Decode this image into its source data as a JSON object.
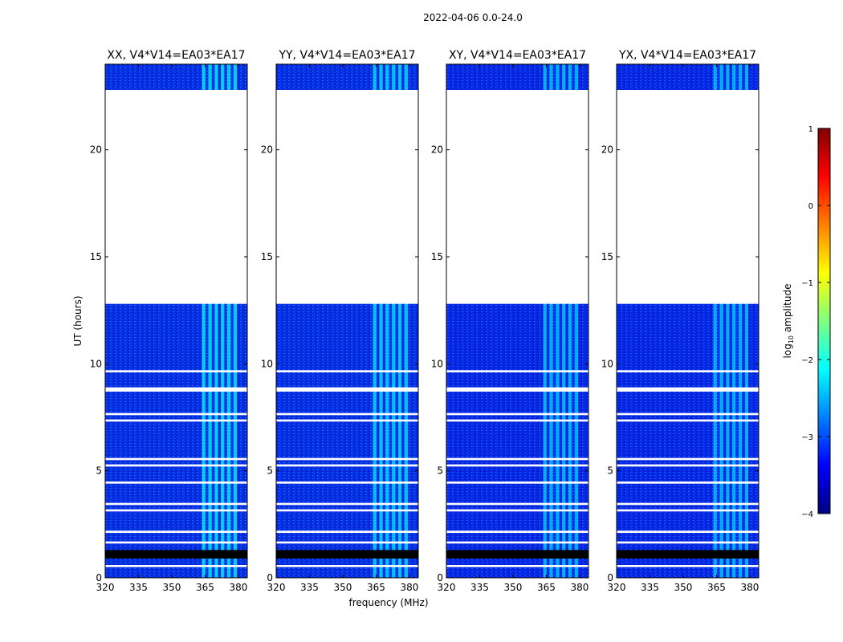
{
  "figure_title": "2022-04-06 0.0-24.0",
  "xlabel": "frequency (MHz)",
  "ylabel": "UT (hours)",
  "colorbar": {
    "label": "log",
    "label_sub": "10",
    "label_rest": " amplitude",
    "ticks": [
      "1",
      "0",
      "−1",
      "−2",
      "−3",
      "−4"
    ],
    "colors": [
      "#800000",
      "#ff0000",
      "#ff8000",
      "#ffff00",
      "#80ff80",
      "#00ffff",
      "#0080ff",
      "#0000ff",
      "#000080"
    ]
  },
  "chart_data": [
    {
      "type": "heatmap",
      "title": "XX, V4*V14=EA03*EA17",
      "xlim": [
        320,
        384
      ],
      "ylim": [
        0,
        24
      ],
      "xticks": [
        "320",
        "335",
        "350",
        "365",
        "380"
      ],
      "yticks": [
        "0",
        "5",
        "10",
        "15",
        "20"
      ],
      "clim": [
        -4,
        1
      ],
      "mean_log_amplitude": -3.0,
      "rfi_band_mhz": [
        363,
        380
      ],
      "rfi_log_amplitude": -2.1
    },
    {
      "type": "heatmap",
      "title": "YY, V4*V14=EA03*EA17",
      "xlim": [
        320,
        384
      ],
      "ylim": [
        0,
        24
      ],
      "xticks": [
        "320",
        "335",
        "350",
        "365",
        "380"
      ],
      "yticks": [
        "0",
        "5",
        "10",
        "15",
        "20"
      ],
      "clim": [
        -4,
        1
      ],
      "mean_log_amplitude": -3.0,
      "rfi_band_mhz": [
        363,
        380
      ],
      "rfi_log_amplitude": -2.2
    },
    {
      "type": "heatmap",
      "title": "XY, V4*V14=EA03*EA17",
      "xlim": [
        320,
        384
      ],
      "ylim": [
        0,
        24
      ],
      "xticks": [
        "320",
        "335",
        "350",
        "365",
        "380"
      ],
      "yticks": [
        "0",
        "5",
        "10",
        "15",
        "20"
      ],
      "clim": [
        -4,
        1
      ],
      "mean_log_amplitude": -3.1,
      "rfi_band_mhz": [
        363,
        380
      ],
      "rfi_log_amplitude": -2.3
    },
    {
      "type": "heatmap",
      "title": "YX, V4*V14=EA03*EA17",
      "xlim": [
        320,
        384
      ],
      "ylim": [
        0,
        24
      ],
      "xticks": [
        "320",
        "335",
        "350",
        "365",
        "380"
      ],
      "yticks": [
        "0",
        "5",
        "10",
        "15",
        "20"
      ],
      "clim": [
        -4,
        1
      ],
      "mean_log_amplitude": -3.1,
      "rfi_band_mhz": [
        363,
        380
      ],
      "rfi_log_amplitude": -2.3
    }
  ],
  "flagged_ranges_hours": [
    [
      12.8,
      22.8
    ],
    [
      9.6,
      9.7
    ],
    [
      8.7,
      8.9
    ],
    [
      7.6,
      7.7
    ],
    [
      7.3,
      7.4
    ],
    [
      5.5,
      5.6
    ],
    [
      5.2,
      5.3
    ],
    [
      4.4,
      4.5
    ],
    [
      3.4,
      3.5
    ],
    [
      3.1,
      3.2
    ],
    [
      2.1,
      2.2
    ],
    [
      1.6,
      1.7
    ],
    [
      0.5,
      0.6
    ]
  ],
  "dead_ranges_hours": [
    [
      0.9,
      1.3
    ]
  ]
}
